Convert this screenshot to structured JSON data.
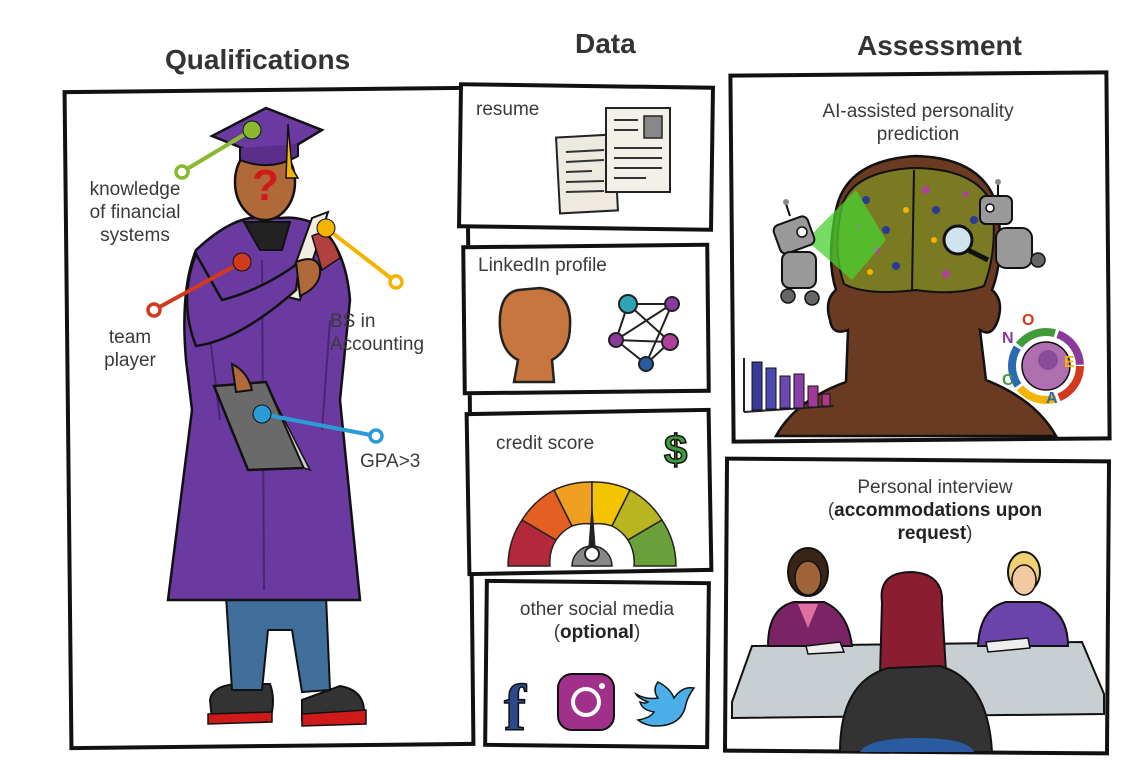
{
  "columns": {
    "qualifications": "Qualifications",
    "data": "Data",
    "assessment": "Assessment"
  },
  "qualifications": {
    "items": [
      {
        "label": "knowledge of financial systems",
        "color": "#8ab831"
      },
      {
        "label": "BS in Accounting",
        "color": "#f4b400"
      },
      {
        "label": "team player",
        "color": "#d23a1e"
      },
      {
        "label": "GPA>3",
        "color": "#2a9bd6"
      }
    ]
  },
  "data": {
    "resume": "resume",
    "linkedin": "LinkedIn profile",
    "credit": "credit score",
    "social": {
      "label": "other social media",
      "qualifier": "optional"
    }
  },
  "assessment": {
    "ai": "AI-assisted personality prediction",
    "interview": {
      "label": "Personal interview",
      "accommodation": "accommodations upon request"
    },
    "ring_letters": [
      "O",
      "C",
      "E",
      "A",
      "N"
    ]
  },
  "colors": {
    "gown": "#6a3aa0",
    "skin": "#b06a3a",
    "skin_dark": "#5a3220",
    "pants": "#3f6f9a",
    "dollar": "#3f9b3a"
  }
}
